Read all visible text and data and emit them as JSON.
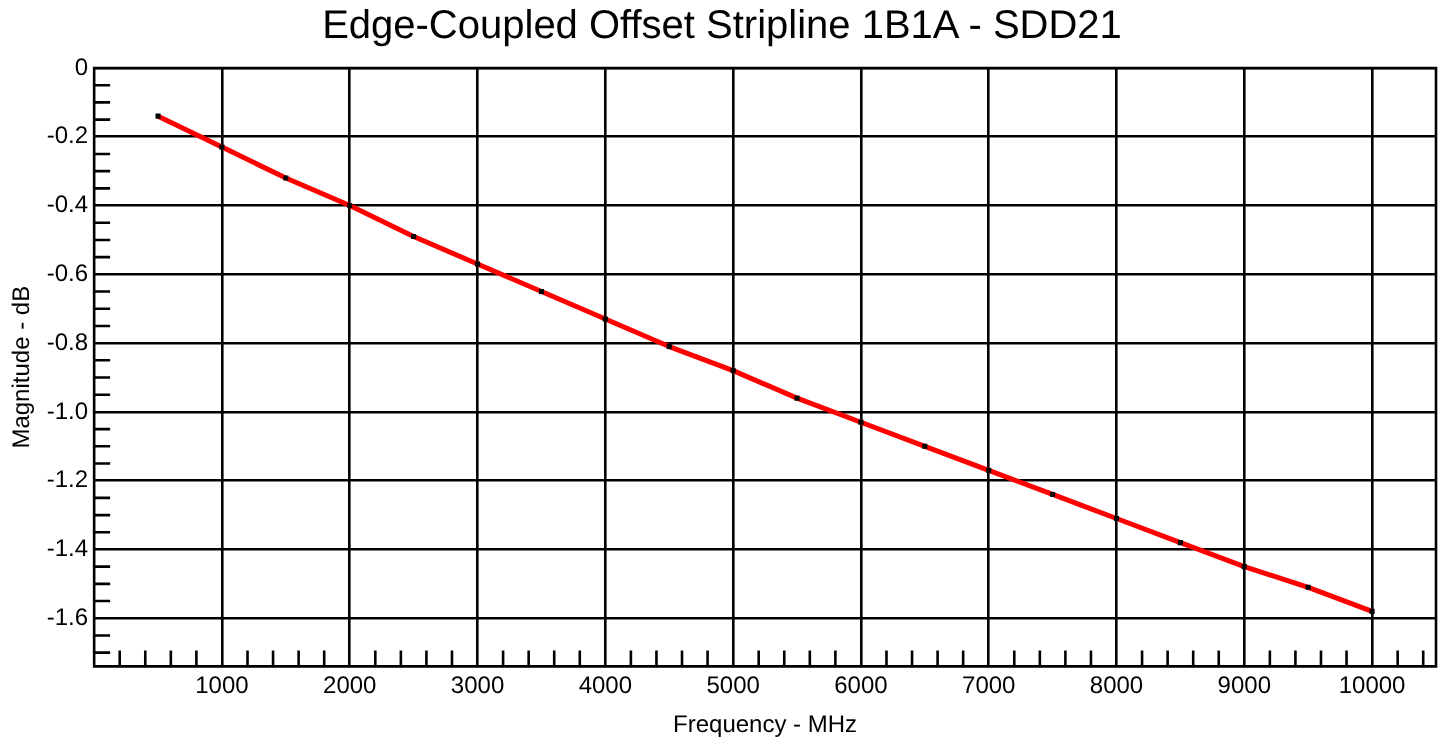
{
  "chart_data": {
    "type": "line",
    "title": "Edge-Coupled Offset Stripline 1B1A - SDD21",
    "xlabel": "Frequency - MHz",
    "ylabel": "Magnitude - dB",
    "x": [
      500,
      1000,
      1500,
      2000,
      2500,
      3000,
      3500,
      4000,
      4500,
      5000,
      5500,
      6000,
      6500,
      7000,
      7500,
      8000,
      8500,
      9000,
      9500,
      10000
    ],
    "series": [
      {
        "color": "#ff0000",
        "values": [
          -0.14,
          -0.23,
          -0.32,
          -0.4,
          -0.49,
          -0.57,
          -0.65,
          -0.73,
          -0.81,
          -0.88,
          -0.96,
          -1.03,
          -1.1,
          -1.17,
          -1.24,
          -1.31,
          -1.38,
          -1.45,
          -1.51,
          -1.58
        ]
      }
    ],
    "marker": "square",
    "grid": true,
    "legend": false,
    "xlim": [
      0,
      10500
    ],
    "ylim": [
      -1.74,
      0
    ],
    "xticks": [
      {
        "value": 200,
        "label": null
      },
      {
        "value": 400,
        "label": null
      },
      {
        "value": 600,
        "label": null
      },
      {
        "value": 800,
        "label": null
      },
      1000,
      {
        "value": 1200,
        "label": null
      },
      {
        "value": 1400,
        "label": null
      },
      {
        "value": 1600,
        "label": null
      },
      {
        "value": 1800,
        "label": null
      },
      2000,
      {
        "value": 2200,
        "label": null
      },
      {
        "value": 2400,
        "label": null
      },
      {
        "value": 2600,
        "label": null
      },
      {
        "value": 2800,
        "label": null
      },
      3000,
      {
        "value": 3200,
        "label": null
      },
      {
        "value": 3400,
        "label": null
      },
      {
        "value": 3600,
        "label": null
      },
      {
        "value": 3800,
        "label": null
      },
      4000,
      {
        "value": 4200,
        "label": null
      },
      {
        "value": 4400,
        "label": null
      },
      {
        "value": 4600,
        "label": null
      },
      {
        "value": 4800,
        "label": null
      },
      5000,
      {
        "value": 5200,
        "label": null
      },
      {
        "value": 5400,
        "label": null
      },
      {
        "value": 5600,
        "label": null
      },
      {
        "value": 5800,
        "label": null
      },
      6000,
      {
        "value": 6200,
        "label": null
      },
      {
        "value": 6400,
        "label": null
      },
      {
        "value": 6600,
        "label": null
      },
      {
        "value": 6800,
        "label": null
      },
      7000,
      {
        "value": 7200,
        "label": null
      },
      {
        "value": 7400,
        "label": null
      },
      {
        "value": 7600,
        "label": null
      },
      {
        "value": 7800,
        "label": null
      },
      8000,
      {
        "value": 8200,
        "label": null
      },
      {
        "value": 8400,
        "label": null
      },
      {
        "value": 8600,
        "label": null
      },
      {
        "value": 8800,
        "label": null
      },
      9000,
      {
        "value": 9200,
        "label": null
      },
      {
        "value": 9400,
        "label": null
      },
      {
        "value": 9600,
        "label": null
      },
      {
        "value": 9800,
        "label": null
      },
      10000,
      {
        "value": 10200,
        "label": null
      },
      {
        "value": 10400,
        "label": null
      }
    ],
    "yticks": [
      0,
      {
        "value": -0.05,
        "label": null
      },
      {
        "value": -0.1,
        "label": null
      },
      {
        "value": -0.15,
        "label": null
      },
      -0.2,
      {
        "value": -0.25,
        "label": null
      },
      {
        "value": -0.3,
        "label": null
      },
      {
        "value": -0.35,
        "label": null
      },
      -0.4,
      {
        "value": -0.45,
        "label": null
      },
      {
        "value": -0.5,
        "label": null
      },
      {
        "value": -0.55,
        "label": null
      },
      -0.6,
      {
        "value": -0.65,
        "label": null
      },
      {
        "value": -0.7,
        "label": null
      },
      {
        "value": -0.75,
        "label": null
      },
      -0.8,
      {
        "value": -0.85,
        "label": null
      },
      {
        "value": -0.9,
        "label": null
      },
      {
        "value": -0.95,
        "label": null
      },
      {
        "value": -1,
        "label": "-1.0"
      },
      {
        "value": -1.05,
        "label": null
      },
      {
        "value": -1.1,
        "label": null
      },
      {
        "value": -1.15,
        "label": null
      },
      -1.2,
      {
        "value": -1.25,
        "label": null
      },
      {
        "value": -1.3,
        "label": null
      },
      {
        "value": -1.35,
        "label": null
      },
      -1.4,
      {
        "value": -1.45,
        "label": null
      },
      {
        "value": -1.5,
        "label": null
      },
      {
        "value": -1.55,
        "label": null
      },
      -1.6,
      {
        "value": -1.65,
        "label": null
      },
      {
        "value": -1.7,
        "label": null
      }
    ]
  }
}
